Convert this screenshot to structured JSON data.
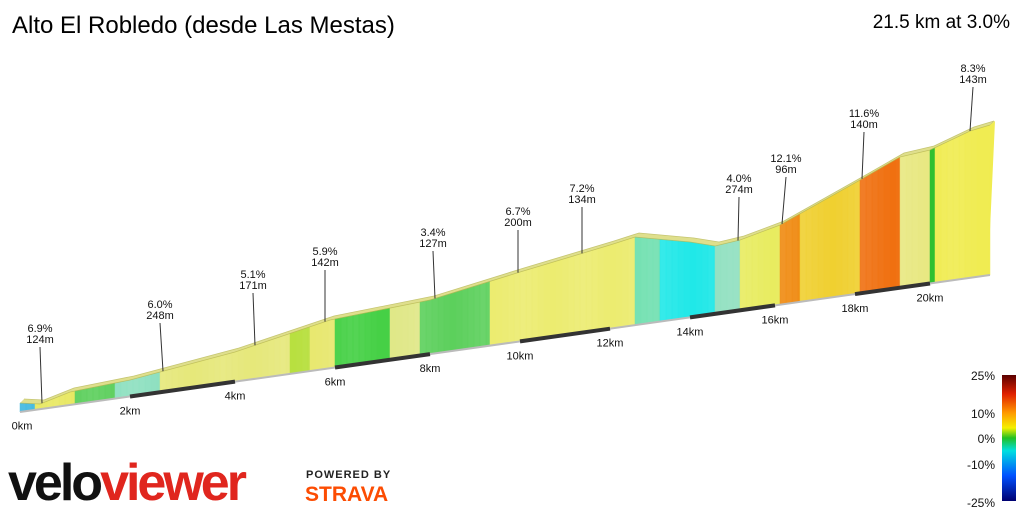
{
  "header": {
    "title": "Alto El Robledo (desde Las Mestas)",
    "summary": "21.5 km at 3.0%"
  },
  "annotations": [
    {
      "grade": "6.9%",
      "length": "124m"
    },
    {
      "grade": "6.0%",
      "length": "248m"
    },
    {
      "grade": "5.1%",
      "length": "171m"
    },
    {
      "grade": "5.9%",
      "length": "142m"
    },
    {
      "grade": "3.4%",
      "length": "127m"
    },
    {
      "grade": "6.7%",
      "length": "200m"
    },
    {
      "grade": "7.2%",
      "length": "134m"
    },
    {
      "grade": "4.0%",
      "length": "274m"
    },
    {
      "grade": "12.1%",
      "length": "96m"
    },
    {
      "grade": "11.6%",
      "length": "140m"
    },
    {
      "grade": "8.3%",
      "length": "143m"
    }
  ],
  "distance_labels": [
    "0km",
    "2km",
    "4km",
    "6km",
    "8km",
    "10km",
    "12km",
    "14km",
    "16km",
    "18km",
    "20km"
  ],
  "legend": {
    "labels": [
      "25%",
      "10%",
      "0%",
      "-10%",
      "-25%"
    ]
  },
  "branding": {
    "logo_first": "velo",
    "logo_second": "viewer",
    "powered": "POWERED BY",
    "strava": "STRAVA"
  }
}
